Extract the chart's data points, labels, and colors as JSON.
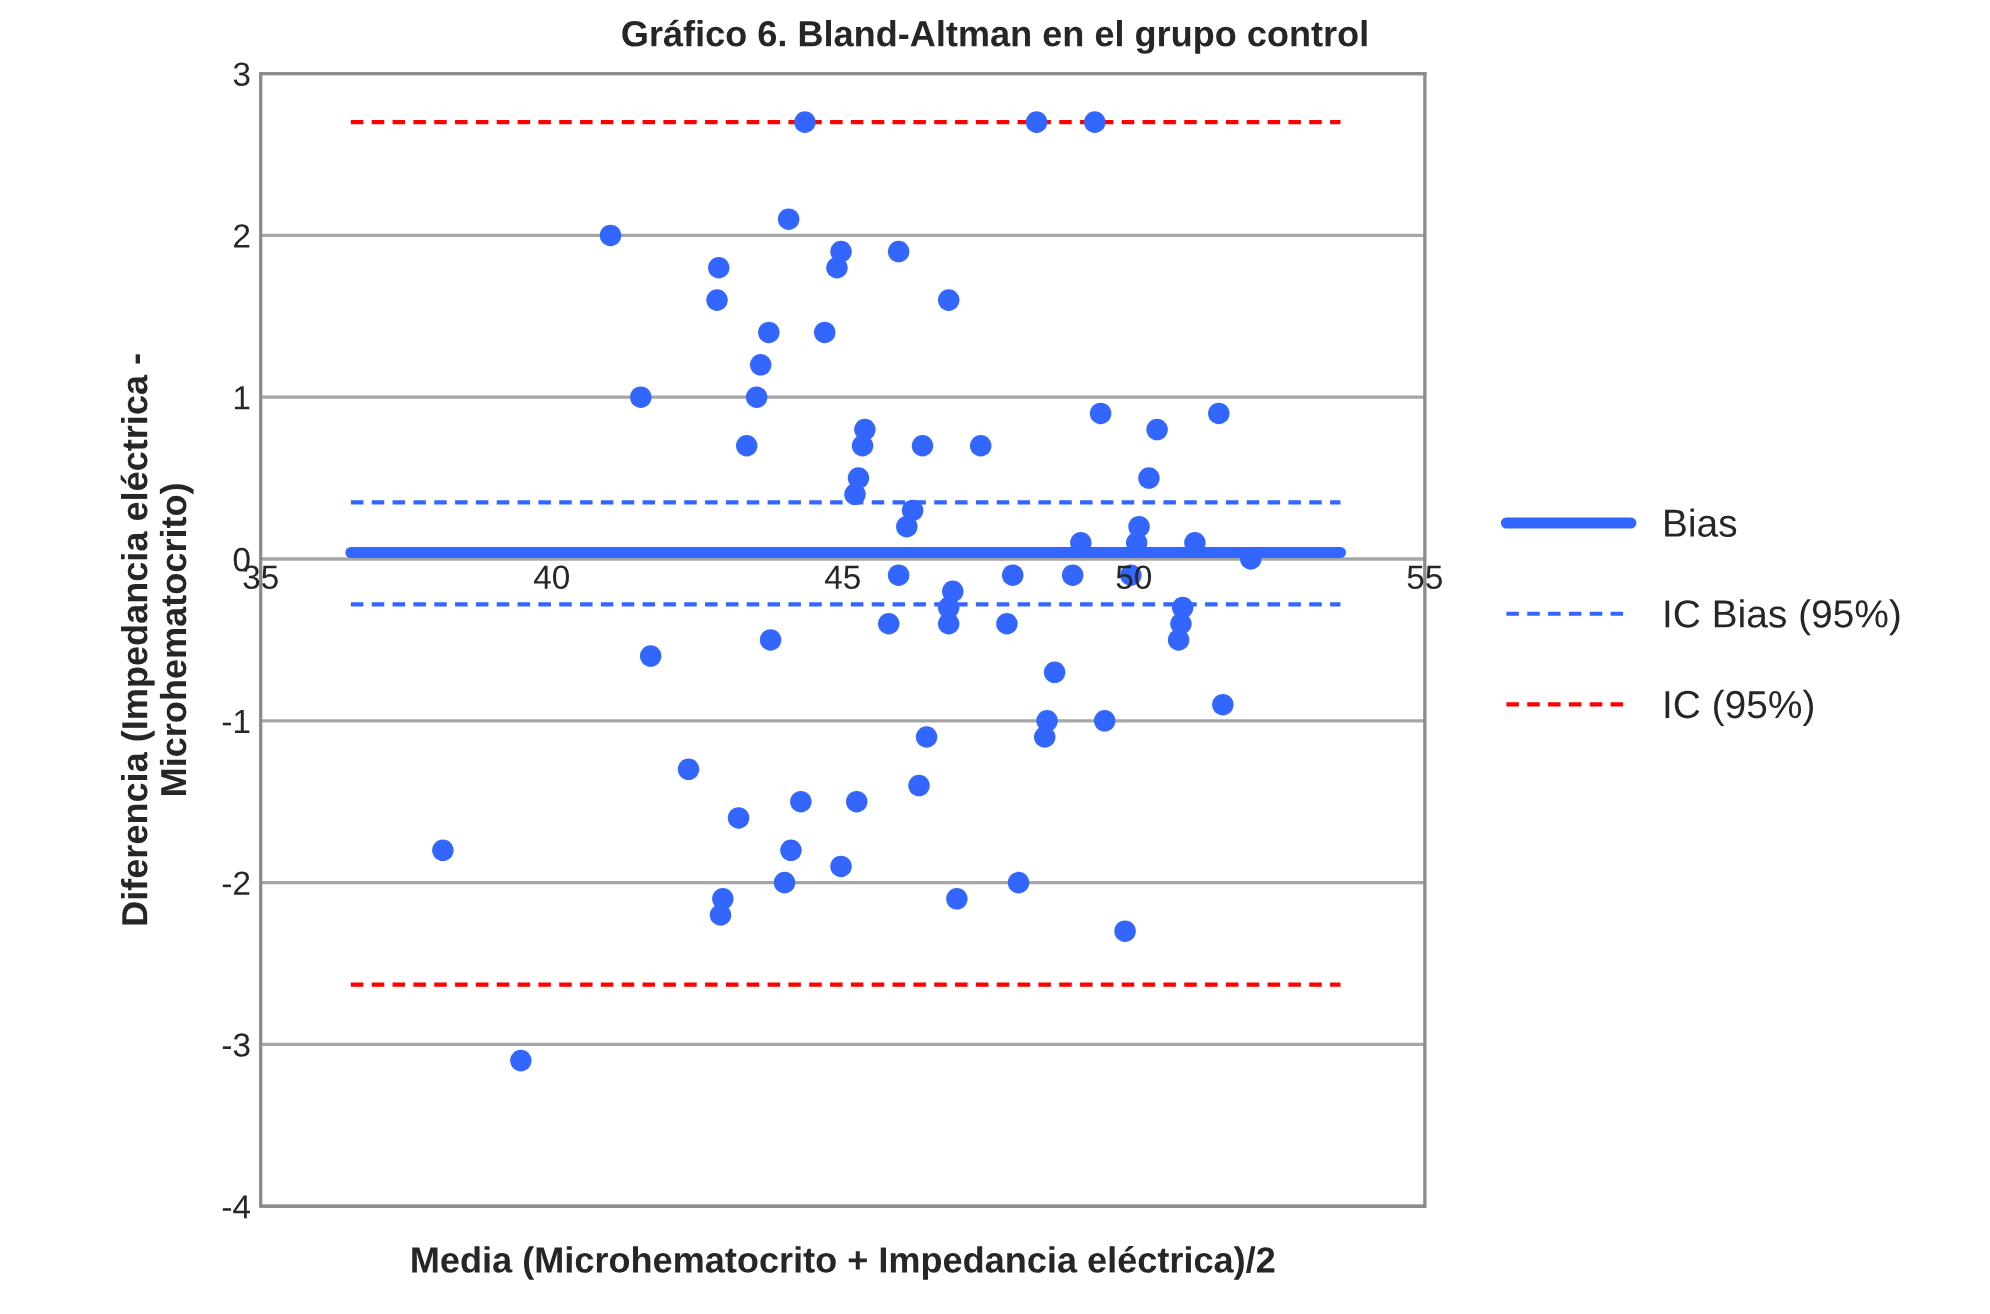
{
  "chart_data": {
    "type": "scatter",
    "title": "Gráfico 6. Bland-Altman en el grupo control",
    "xlabel": "Media (Microhematocrito + Impedancia eléctrica)/2",
    "ylabel": "Diferencia (Impedancia eléctrica -\nMicrohematocrito)",
    "xlim": [
      35,
      55
    ],
    "xticks": [
      35,
      40,
      45,
      50,
      55
    ],
    "ylim": [
      -4,
      3
    ],
    "yticks": [
      -4,
      -3,
      -2,
      -1,
      0,
      1,
      2,
      3
    ],
    "grid": "y",
    "legend": "right",
    "series": [
      {
        "color": "#3366ff",
        "marker": "circle",
        "x": [
          44.35,
          48.33,
          49.33,
          41.01,
          44.07,
          44.97,
          44.9,
          45.96,
          42.87,
          42.84,
          46.82,
          43.73,
          44.69,
          41.53,
          43.52,
          43.59,
          43.35,
          45.38,
          45.34,
          46.37,
          47.37,
          49.43,
          50.4,
          51.46,
          50.26,
          45.27,
          45.21,
          46.2,
          46.1,
          50.09,
          50.05,
          49.09,
          51.05,
          52.01,
          45.96,
          47.92,
          48.95,
          49.95,
          46.89,
          45.79,
          46.82,
          47.82,
          46.82,
          50.84,
          50.81,
          50.77,
          41.7,
          43.76,
          48.64,
          48.51,
          48.47,
          49.5,
          51.53,
          46.44,
          46.31,
          42.35,
          43.21,
          44.28,
          45.24,
          38.13,
          44.11,
          44.97,
          42.94,
          42.9,
          44.0,
          48.02,
          46.96,
          49.85,
          39.47
        ],
        "values": [
          2.7,
          2.7,
          2.7,
          2.0,
          2.1,
          1.9,
          1.8,
          1.9,
          1.8,
          1.6,
          1.6,
          1.4,
          1.4,
          1.0,
          1.0,
          1.2,
          0.7,
          0.8,
          0.7,
          0.7,
          0.7,
          0.9,
          0.8,
          0.9,
          0.5,
          0.5,
          0.4,
          0.3,
          0.2,
          0.2,
          0.1,
          0.1,
          0.1,
          0.0,
          -0.1,
          -0.1,
          -0.1,
          -0.1,
          -0.2,
          -0.4,
          -0.4,
          -0.4,
          -0.3,
          -0.3,
          -0.4,
          -0.5,
          -0.6,
          -0.5,
          -0.7,
          -1.0,
          -1.1,
          -1.0,
          -0.9,
          -1.1,
          -1.4,
          -1.3,
          -1.6,
          -1.5,
          -1.5,
          -1.8,
          -1.8,
          -1.9,
          -2.1,
          -2.2,
          -2.0,
          -2.0,
          -2.1,
          -2.3,
          -3.1
        ]
      },
      {
        "type": "line",
        "name": "Bias",
        "color": "#3366ff",
        "line_style": "solid",
        "x": [
          36.55,
          53.55
        ],
        "values": [
          0.04,
          0.04
        ]
      },
      {
        "type": "line",
        "name": "IC Bias (95%)",
        "color": "#3366ff",
        "line_style": "dashed",
        "x": [
          36.55,
          53.55
        ],
        "values": [
          0.35,
          0.35
        ]
      },
      {
        "type": "line",
        "color": "#3366ff",
        "line_style": "dashed",
        "x": [
          36.55,
          53.55
        ],
        "values": [
          -0.28,
          -0.28
        ]
      },
      {
        "type": "line",
        "name": "IC (95%)",
        "color": "#ff0000",
        "line_style": "dashed",
        "x": [
          36.55,
          53.55
        ],
        "values": [
          2.7,
          2.7
        ]
      },
      {
        "type": "line",
        "color": "#ff0000",
        "line_style": "dashed",
        "x": [
          36.55,
          53.55
        ],
        "values": [
          -2.63,
          -2.63
        ]
      }
    ]
  }
}
